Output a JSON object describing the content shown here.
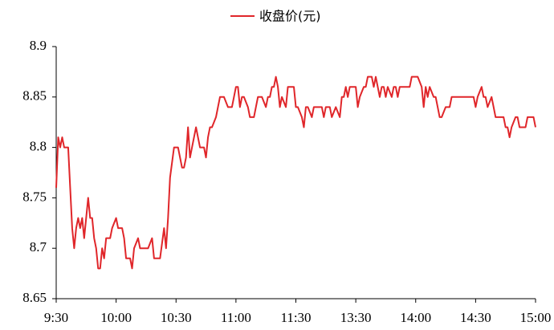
{
  "chart_data": {
    "type": "line",
    "x": [
      0,
      1,
      2,
      3,
      4,
      6,
      7,
      8,
      9,
      10,
      11,
      12,
      13,
      14,
      15,
      16,
      17,
      18,
      19,
      20,
      21,
      22,
      23,
      24,
      25,
      27,
      28,
      30,
      31,
      33,
      34,
      35,
      37,
      38,
      39,
      41,
      42,
      44,
      46,
      48,
      49,
      51,
      52,
      54,
      55,
      56,
      57,
      59,
      61,
      63,
      64,
      65,
      66,
      67,
      68,
      70,
      71,
      72,
      74,
      75,
      76,
      77,
      78,
      80,
      81,
      82,
      84,
      86,
      88,
      89,
      90,
      91,
      92,
      93,
      94,
      96,
      97,
      99,
      100,
      101,
      103,
      105,
      106,
      107,
      108,
      109,
      110,
      111,
      112,
      113,
      115,
      116,
      117,
      119,
      120,
      121,
      123,
      124,
      125,
      126,
      128,
      129,
      131,
      133,
      134,
      135,
      137,
      138,
      140,
      142,
      143,
      144,
      145,
      146,
      147,
      149,
      150,
      151,
      152,
      154,
      155,
      156,
      158,
      159,
      160,
      162,
      163,
      164,
      165,
      166,
      168,
      169,
      170,
      171,
      172,
      174,
      176,
      177,
      178,
      180,
      181,
      183,
      184,
      185,
      186,
      187,
      189,
      190,
      191,
      192,
      193,
      195,
      196,
      197,
      198,
      199,
      201,
      203,
      205,
      207,
      209,
      210,
      211,
      213,
      214,
      215,
      216,
      218,
      219,
      220,
      222,
      224,
      225,
      226,
      227,
      228,
      230,
      231,
      232,
      234,
      235,
      236,
      238,
      239,
      240
    ],
    "series": [
      {
        "name": "收盘价(元)",
        "color": "#e0262a",
        "values": [
          8.76,
          8.81,
          8.8,
          8.81,
          8.8,
          8.8,
          8.76,
          8.72,
          8.7,
          8.72,
          8.73,
          8.72,
          8.73,
          8.71,
          8.73,
          8.75,
          8.73,
          8.73,
          8.71,
          8.7,
          8.68,
          8.68,
          8.7,
          8.69,
          8.71,
          8.71,
          8.72,
          8.73,
          8.72,
          8.72,
          8.71,
          8.69,
          8.69,
          8.68,
          8.7,
          8.71,
          8.7,
          8.7,
          8.7,
          8.71,
          8.69,
          8.69,
          8.69,
          8.72,
          8.7,
          8.73,
          8.77,
          8.8,
          8.8,
          8.78,
          8.78,
          8.79,
          8.82,
          8.79,
          8.8,
          8.82,
          8.81,
          8.8,
          8.8,
          8.79,
          8.81,
          8.82,
          8.82,
          8.83,
          8.84,
          8.85,
          8.85,
          8.84,
          8.84,
          8.85,
          8.86,
          8.86,
          8.84,
          8.85,
          8.85,
          8.84,
          8.83,
          8.83,
          8.84,
          8.85,
          8.85,
          8.84,
          8.85,
          8.85,
          8.86,
          8.86,
          8.87,
          8.86,
          8.84,
          8.85,
          8.84,
          8.86,
          8.86,
          8.86,
          8.84,
          8.84,
          8.83,
          8.82,
          8.84,
          8.84,
          8.83,
          8.84,
          8.84,
          8.84,
          8.83,
          8.84,
          8.84,
          8.83,
          8.84,
          8.83,
          8.85,
          8.85,
          8.86,
          8.85,
          8.86,
          8.86,
          8.86,
          8.84,
          8.85,
          8.86,
          8.86,
          8.87,
          8.87,
          8.86,
          8.87,
          8.85,
          8.86,
          8.86,
          8.85,
          8.86,
          8.85,
          8.86,
          8.86,
          8.85,
          8.86,
          8.86,
          8.86,
          8.86,
          8.87,
          8.87,
          8.87,
          8.86,
          8.84,
          8.86,
          8.85,
          8.86,
          8.85,
          8.85,
          8.84,
          8.83,
          8.83,
          8.84,
          8.84,
          8.84,
          8.85,
          8.85,
          8.85,
          8.85,
          8.85,
          8.85,
          8.85,
          8.84,
          8.85,
          8.86,
          8.85,
          8.85,
          8.84,
          8.85,
          8.84,
          8.83,
          8.83,
          8.83,
          8.82,
          8.82,
          8.81,
          8.82,
          8.83,
          8.83,
          8.82,
          8.82,
          8.82,
          8.83,
          8.83,
          8.83,
          8.82
        ]
      }
    ],
    "xlim": [
      0,
      240
    ],
    "xticks": [
      {
        "value": 0,
        "label": "9:30"
      },
      {
        "value": 30,
        "label": "10:00"
      },
      {
        "value": 60,
        "label": "10:30"
      },
      {
        "value": 90,
        "label": "11:00"
      },
      {
        "value": 120,
        "label": "11:30"
      },
      {
        "value": 150,
        "label": "13:30"
      },
      {
        "value": 180,
        "label": "14:00"
      },
      {
        "value": 210,
        "label": "14:30"
      },
      {
        "value": 240,
        "label": "15:00"
      }
    ],
    "ylim": [
      8.65,
      8.9
    ],
    "yticks": [
      8.65,
      8.7,
      8.75,
      8.8,
      8.85,
      8.9
    ],
    "legend": "top"
  }
}
